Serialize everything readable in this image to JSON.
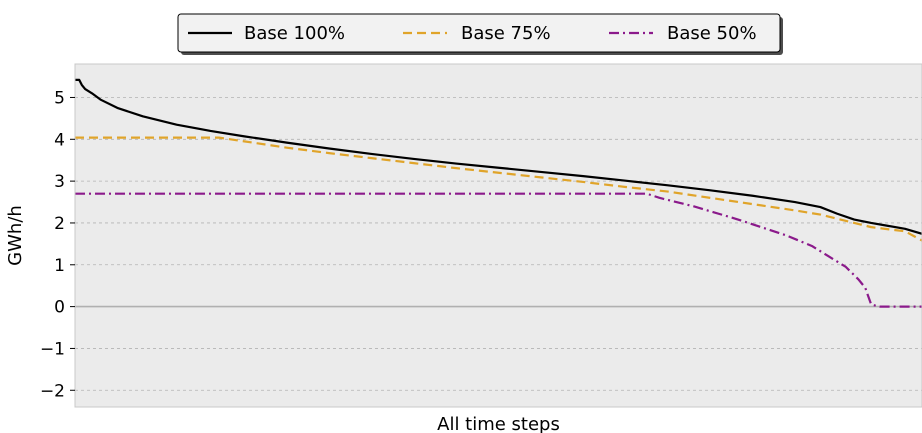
{
  "chart_data": {
    "type": "line",
    "title": "",
    "xlabel": "All time steps",
    "ylabel": "GWh/h",
    "ylim": [
      -2.4,
      5.8
    ],
    "xlim": [
      0,
      100
    ],
    "yticks": [
      -2,
      -1,
      0,
      1,
      2,
      3,
      4,
      5
    ],
    "ytick_labels": [
      "−2",
      "−1",
      "0",
      "1",
      "2",
      "3",
      "4",
      "5"
    ],
    "grid": "horizontal dashed",
    "x_ticks": "none",
    "background": "#ebebeb",
    "zero_line_color": "#b0b0b0",
    "legend_position": "top-center, outside plot",
    "series": [
      {
        "name": "Base 100%",
        "color": "#000000",
        "style": "solid",
        "x": [
          0,
          0.5,
          0.8,
          1.2,
          2,
          3,
          5,
          8,
          12,
          16,
          20,
          25,
          30,
          35,
          40,
          45,
          50,
          55,
          60,
          65,
          70,
          75,
          80,
          85,
          88,
          90,
          92,
          94,
          96,
          98,
          100
        ],
        "y": [
          5.42,
          5.42,
          5.3,
          5.2,
          5.1,
          4.95,
          4.75,
          4.55,
          4.35,
          4.2,
          4.07,
          3.92,
          3.78,
          3.65,
          3.53,
          3.42,
          3.32,
          3.22,
          3.12,
          3.01,
          2.9,
          2.78,
          2.65,
          2.5,
          2.38,
          2.22,
          2.08,
          2.0,
          1.93,
          1.86,
          1.74
        ]
      },
      {
        "name": "Base 75%",
        "color": "#e0a42a",
        "style": "dashed",
        "x": [
          0,
          10,
          17,
          20,
          25,
          30,
          35,
          40,
          45,
          50,
          55,
          60,
          65,
          70,
          75,
          80,
          85,
          88,
          90,
          92,
          94,
          96,
          98,
          100
        ],
        "y": [
          4.04,
          4.04,
          4.04,
          3.95,
          3.8,
          3.67,
          3.55,
          3.43,
          3.31,
          3.2,
          3.09,
          2.98,
          2.86,
          2.75,
          2.6,
          2.45,
          2.3,
          2.2,
          2.1,
          2.0,
          1.9,
          1.85,
          1.8,
          1.58
        ]
      },
      {
        "name": "Base 50%",
        "color": "#8b1a8b",
        "style": "dashdot",
        "x": [
          0,
          67.5,
          69,
          71,
          73,
          75,
          78,
          81,
          84,
          87,
          89,
          91,
          92.5,
          93.3,
          94,
          95,
          100
        ],
        "y": [
          2.7,
          2.7,
          2.6,
          2.5,
          2.4,
          2.28,
          2.1,
          1.9,
          1.7,
          1.45,
          1.2,
          0.95,
          0.65,
          0.45,
          0.05,
          0.0,
          0.0
        ]
      }
    ]
  }
}
